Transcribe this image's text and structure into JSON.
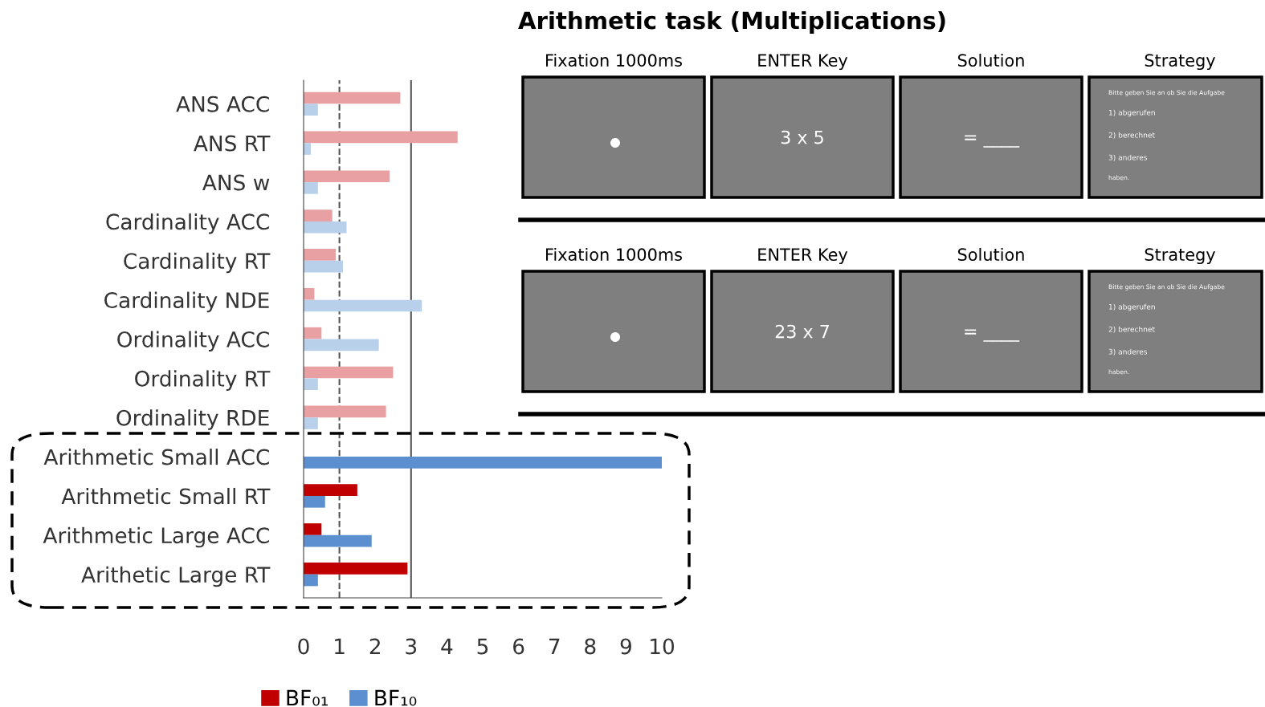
{
  "chart_data": [
    {
      "type": "bar",
      "orientation": "horizontal",
      "categories": [
        "ANS ACC",
        "ANS RT",
        "ANS w",
        "Cardinality ACC",
        "Cardinality RT",
        "Cardinality NDE",
        "Ordinality ACC",
        "Ordinality RT",
        "Ordinality RDE",
        "Arithmetic Small ACC",
        "Arithmetic Small RT",
        "Arithmetic Large ACC",
        "Arithetic Large RT"
      ],
      "series": [
        {
          "name": "BF₀₁",
          "color": "#c00000",
          "colors": [
            "#e8a0a3",
            "#e8a0a3",
            "#e8a0a3",
            "#e8a0a3",
            "#e8a0a3",
            "#e8a0a3",
            "#e8a0a3",
            "#e8a0a3",
            "#e8a0a3",
            "#c00000",
            "#c00000",
            "#c00000",
            "#c00000"
          ],
          "values": [
            2.7,
            4.3,
            2.4,
            0.8,
            0.9,
            0.3,
            0.5,
            2.5,
            2.3,
            0,
            1.5,
            0.5,
            2.9
          ]
        },
        {
          "name": "BF₁₀",
          "color": "#5b8fd0",
          "colors": [
            "#b8d0ea",
            "#b8d0ea",
            "#b8d0ea",
            "#b8d0ea",
            "#b8d0ea",
            "#b8d0ea",
            "#b8d0ea",
            "#b8d0ea",
            "#b8d0ea",
            "#5b8fd0",
            "#5b8fd0",
            "#5b8fd0",
            "#5b8fd0"
          ],
          "values": [
            0.4,
            0.2,
            0.4,
            1.2,
            1.1,
            3.3,
            2.1,
            0.4,
            0.4,
            10,
            0.6,
            1.9,
            0.4
          ]
        }
      ],
      "xlim": [
        0,
        10
      ],
      "xticks": [
        0,
        1,
        2,
        3,
        4,
        5,
        6,
        7,
        8,
        9,
        10
      ],
      "ref_lines": [
        {
          "axis": "x",
          "value": 1,
          "line_style": "dashed",
          "color": "#555555"
        },
        {
          "axis": "x",
          "value": 3,
          "line_style": "solid",
          "color": "#555555"
        }
      ],
      "legend": "bottom"
    },
    {
      "type": "other",
      "title": "Arithmetic task (Multiplications)",
      "categories": [
        "Fixation 1000ms",
        "ENTER Key",
        "Solution",
        "Strategy"
      ],
      "annotations": [
        "3 x 5",
        "= ____",
        "Bitte geben Sie an ob Sie die Aufgabe",
        "1) abgerufen",
        "2) berechnet",
        "3) anderes",
        "haben.",
        "23 x 7",
        "= ____",
        "Bitte geben Sie an ob Sie die Aufgabe",
        "1) abgerufen",
        "2) berechnet",
        "3) anderes",
        "haben."
      ]
    }
  ]
}
